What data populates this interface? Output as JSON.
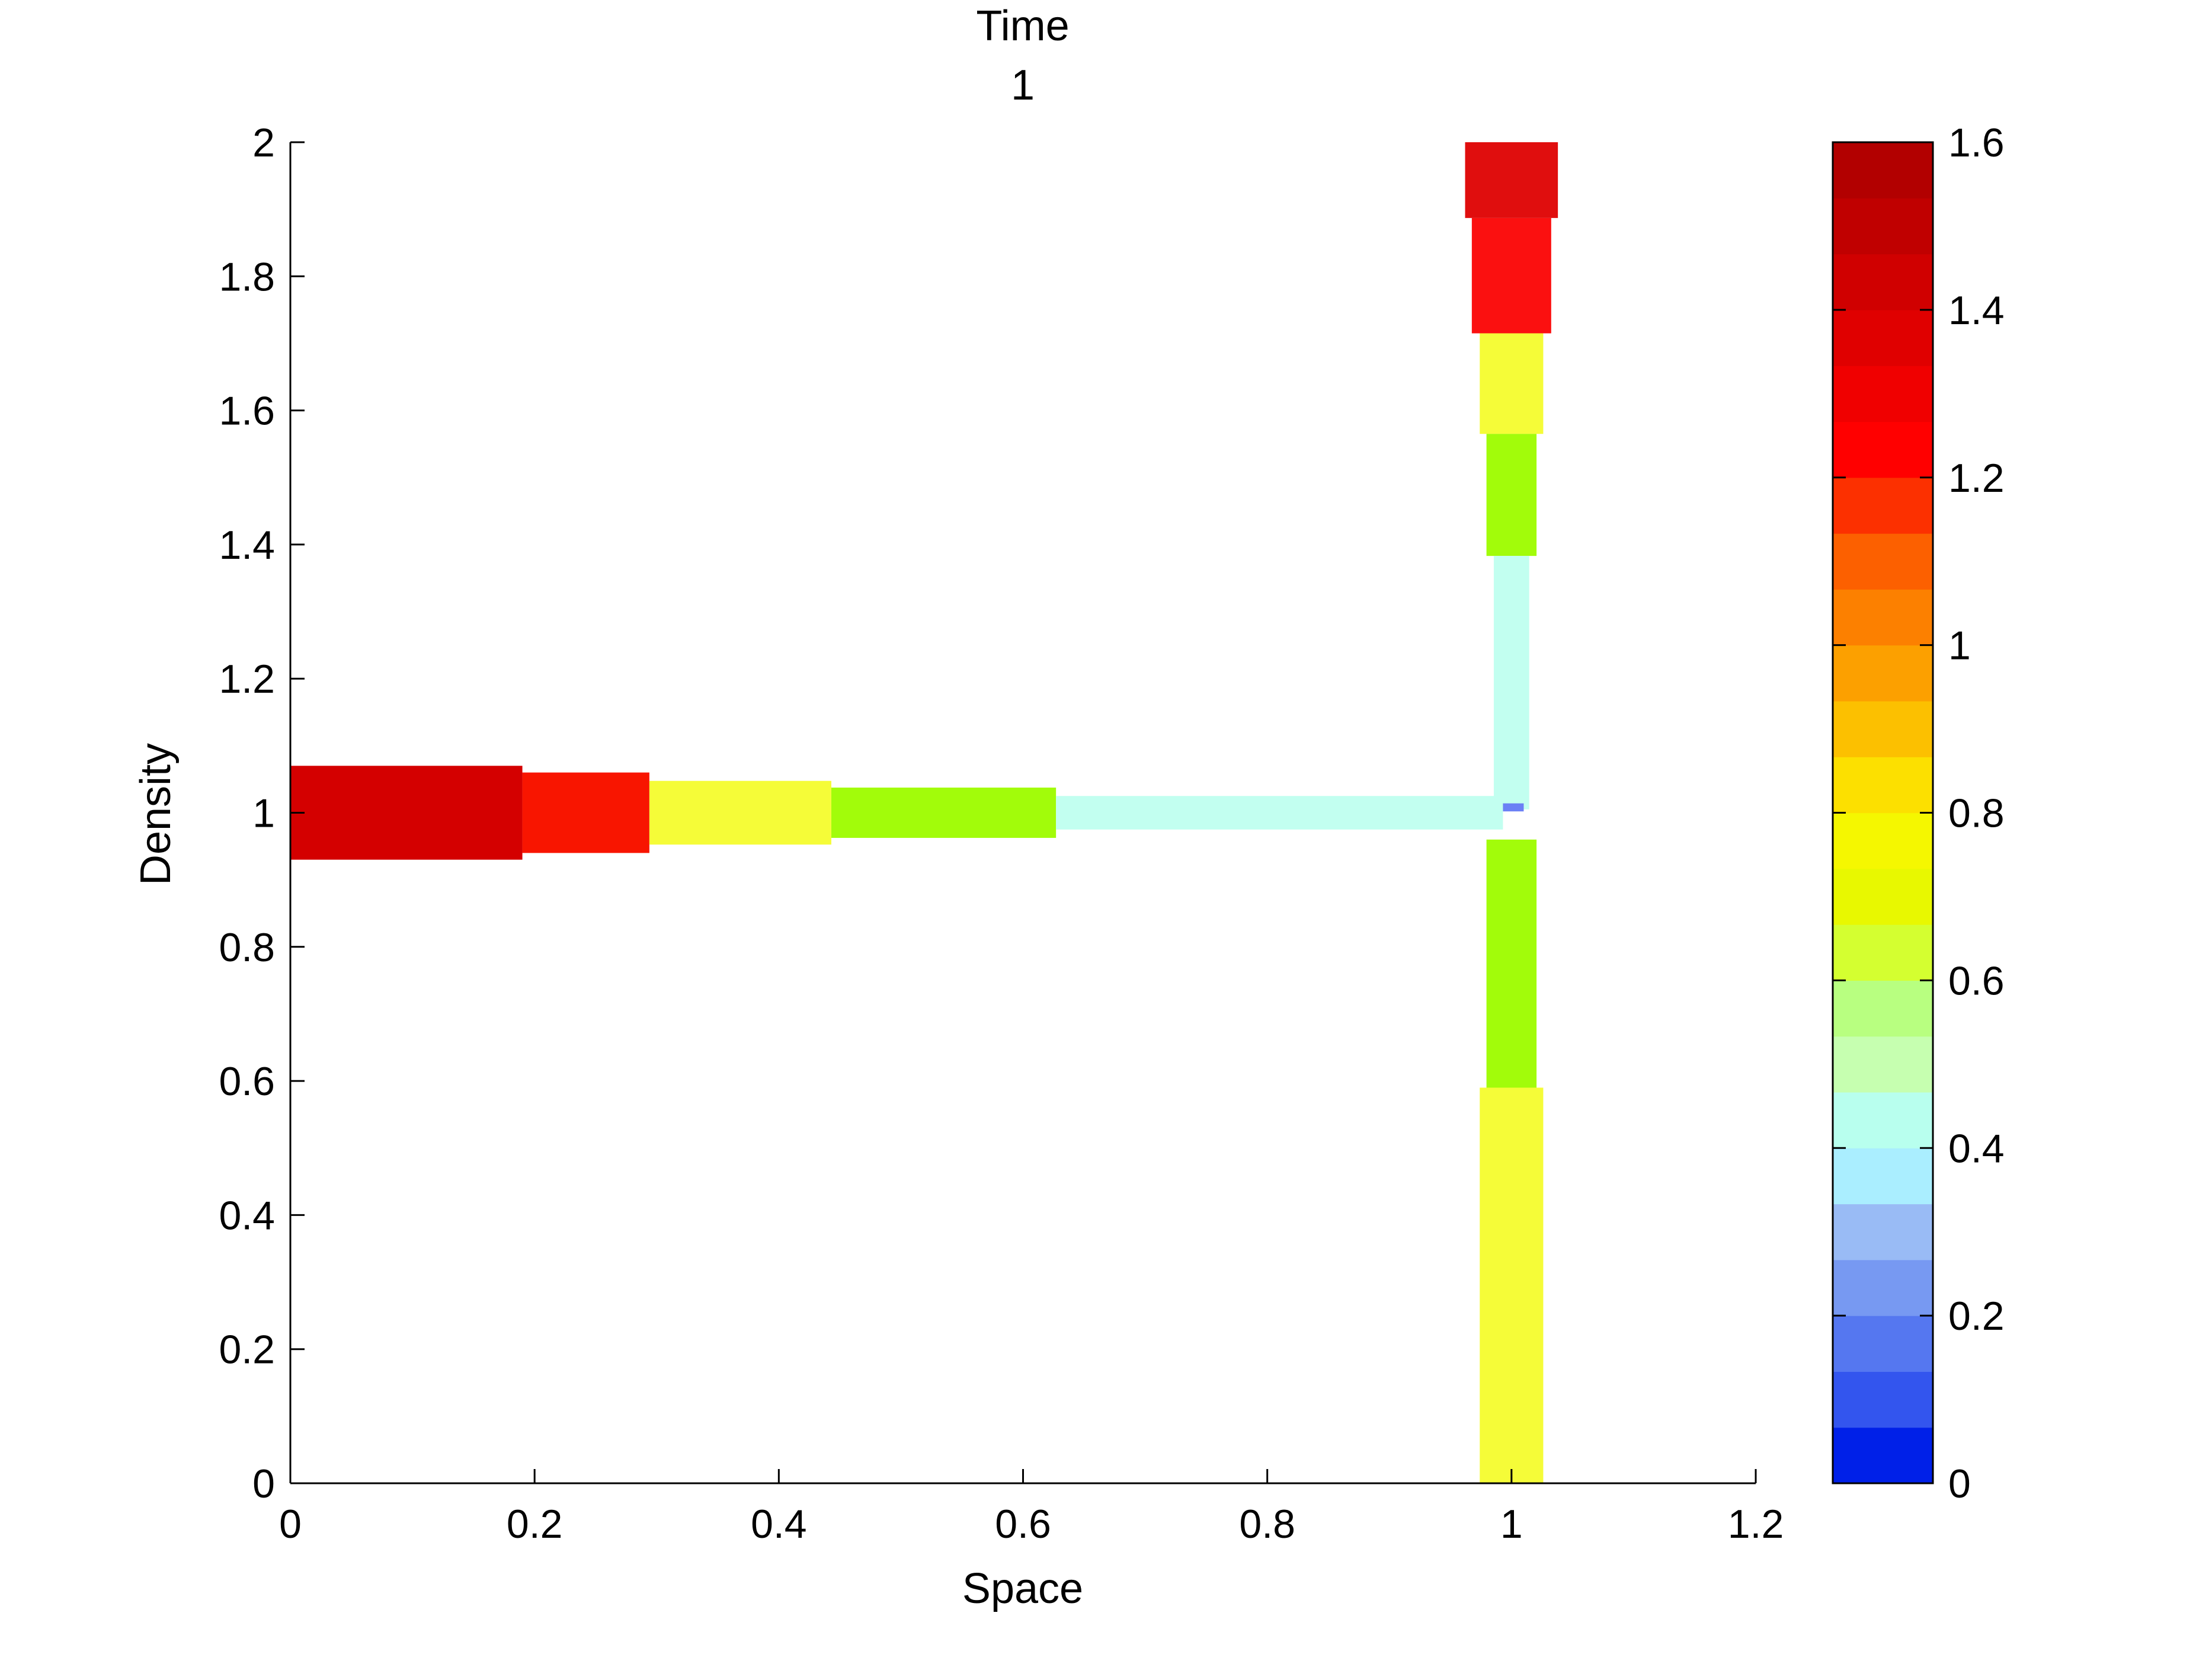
{
  "chart_data": {
    "type": "heatmap",
    "title_lines": [
      "Time",
      "1"
    ],
    "xlabel": "Space",
    "ylabel": "Density",
    "xlim": [
      0,
      1.2
    ],
    "ylim": [
      0,
      2
    ],
    "xticks": [
      0,
      0.2,
      0.4,
      0.6,
      0.8,
      1,
      1.2
    ],
    "xtick_labels": [
      "0",
      "0.2",
      "0.4",
      "0.6",
      "0.8",
      "1",
      "1.2"
    ],
    "yticks": [
      0,
      0.2,
      0.4,
      0.6,
      0.8,
      1,
      1.2,
      1.4,
      1.6,
      1.8,
      2
    ],
    "ytick_labels": [
      "0",
      "0.2",
      "0.4",
      "0.6",
      "0.8",
      "1",
      "1.2",
      "1.4",
      "1.6",
      "1.8",
      "2"
    ],
    "grid": false,
    "colorbar": {
      "range": [
        0,
        1.6
      ],
      "ticks": [
        0,
        0.2,
        0.4,
        0.6,
        0.8,
        1,
        1.2,
        1.4,
        1.6
      ],
      "tick_labels": [
        "0",
        "0.2",
        "0.4",
        "0.6",
        "0.8",
        "1",
        "1.2",
        "1.4",
        "1.6"
      ],
      "colors": [
        "#0020e8",
        "#3355ee",
        "#5577f0",
        "#7799f2",
        "#99bbf5",
        "#aaeeff",
        "#b8ffee",
        "#c6ffb0",
        "#b8ff80",
        "#d4ff30",
        "#e8f800",
        "#f5f700",
        "#fce000",
        "#fcc000",
        "#fca000",
        "#fc8000",
        "#fc6000",
        "#fc3000",
        "#ff0000",
        "#f00000",
        "#e00000",
        "#d00000",
        "#c00000",
        "#b20000"
      ]
    },
    "segments": [
      {
        "name": "horizontal-road-1",
        "orientation": "horizontal",
        "x": [
          0,
          0.19
        ],
        "center": 1,
        "thickness": 0.14,
        "color": "#d40000",
        "value": 1.35
      },
      {
        "name": "horizontal-road-2",
        "orientation": "horizontal",
        "x": [
          0.19,
          0.294
        ],
        "center": 1,
        "thickness": 0.12,
        "color": "#f81500",
        "value": 1.0
      },
      {
        "name": "horizontal-road-3",
        "orientation": "horizontal",
        "x": [
          0.294,
          0.443
        ],
        "center": 1,
        "thickness": 0.095,
        "color": "#f5fc38",
        "value": 0.5
      },
      {
        "name": "horizontal-road-4",
        "orientation": "horizontal",
        "x": [
          0.443,
          0.627
        ],
        "center": 1,
        "thickness": 0.075,
        "color": "#a2fc0a",
        "value": 0.43
      },
      {
        "name": "horizontal-road-5",
        "orientation": "horizontal",
        "x": [
          0.627,
          0.993
        ],
        "center": 1,
        "thickness": 0.05,
        "color": "#c2fff0",
        "value": 0.22
      },
      {
        "name": "vertical-road-top-1",
        "orientation": "vertical",
        "y": [
          1.887,
          2.0
        ],
        "center": 1.0,
        "thickness": 0.076,
        "color": "#e00e0e",
        "value": 1.25
      },
      {
        "name": "vertical-road-top-2",
        "orientation": "vertical",
        "y": [
          1.715,
          1.887
        ],
        "center": 1.0,
        "thickness": 0.065,
        "color": "#fb1010",
        "value": 1.05
      },
      {
        "name": "vertical-road-top-3",
        "orientation": "vertical",
        "y": [
          1.565,
          1.715
        ],
        "center": 1.0,
        "thickness": 0.052,
        "color": "#f5fc38",
        "value": 0.5
      },
      {
        "name": "vertical-road-top-4",
        "orientation": "vertical",
        "y": [
          1.383,
          1.565
        ],
        "center": 1.0,
        "thickness": 0.041,
        "color": "#a2fc0a",
        "value": 0.43
      },
      {
        "name": "vertical-road-top-5",
        "orientation": "vertical",
        "y": [
          1.005,
          1.383
        ],
        "center": 1.0,
        "thickness": 0.029,
        "color": "#c2fff0",
        "value": 0.22
      },
      {
        "name": "junction-cell",
        "orientation": "horizontal",
        "x": [
          0.993,
          1.01
        ],
        "center": 1.008,
        "thickness": 0.012,
        "color": "#6b80f5",
        "value": 0.1
      },
      {
        "name": "vertical-road-bottom-1",
        "orientation": "vertical",
        "y": [
          0.58,
          0.96
        ],
        "center": 1.0,
        "thickness": 0.041,
        "color": "#a2fc0a",
        "value": 0.43
      },
      {
        "name": "vertical-road-bottom-2",
        "orientation": "vertical",
        "y": [
          0,
          0.59
        ],
        "center": 1.0,
        "thickness": 0.052,
        "color": "#f5fc38",
        "value": 0.5
      }
    ]
  }
}
